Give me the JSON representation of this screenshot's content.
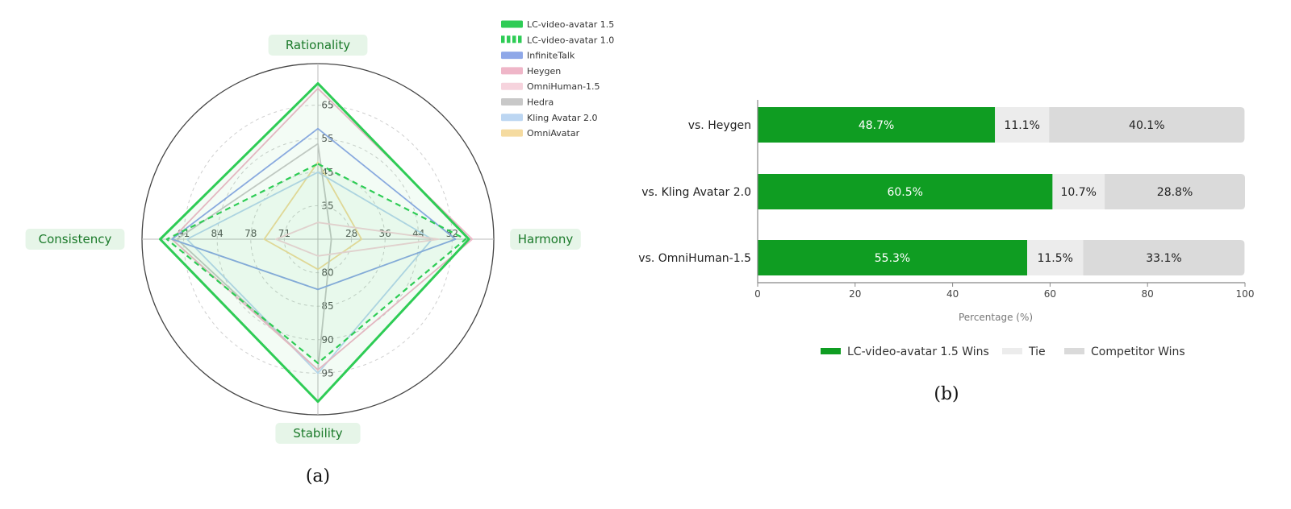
{
  "chart_data": [
    {
      "type": "radar",
      "axes": [
        {
          "name": "Rationality",
          "ticks": [
            "35",
            "45",
            "55",
            "65"
          ]
        },
        {
          "name": "Harmony",
          "ticks": [
            "28",
            "36",
            "44",
            "52"
          ]
        },
        {
          "name": "Stability",
          "ticks": [
            "80",
            "85",
            "90",
            "95"
          ]
        },
        {
          "name": "Consistency",
          "ticks": [
            "71",
            "78",
            "84",
            "91"
          ]
        }
      ],
      "series": [
        {
          "name": "LC-video-avatar 1.5",
          "color": "#2ecc55",
          "style": "solid",
          "values": [
            0.93,
            0.9,
            0.97,
            0.94
          ]
        },
        {
          "name": "LC-video-avatar 1.0",
          "color": "#2ecc55",
          "style": "dashed",
          "values": [
            0.45,
            0.88,
            0.74,
            0.9
          ]
        },
        {
          "name": "InfiniteTalk",
          "color": "#8fa8e8",
          "style": "solid",
          "values": [
            0.66,
            0.82,
            0.3,
            0.87
          ]
        },
        {
          "name": "Heygen",
          "color": "#efb6c8",
          "style": "solid",
          "values": [
            0.9,
            0.92,
            0.78,
            0.87
          ]
        },
        {
          "name": "OmniHuman-1.5",
          "color": "#f6d3dd",
          "style": "solid",
          "values": [
            0.1,
            0.72,
            0.1,
            0.25
          ]
        },
        {
          "name": "Hedra",
          "color": "#c8c8c8",
          "style": "solid",
          "values": [
            0.57,
            0.08,
            0.78,
            0.84
          ]
        },
        {
          "name": "Kling Avatar 2.0",
          "color": "#bcd6f2",
          "style": "solid",
          "values": [
            0.4,
            0.68,
            0.8,
            0.78
          ]
        },
        {
          "name": "OmniAvatar",
          "color": "#f5dba0",
          "style": "solid",
          "values": [
            0.46,
            0.26,
            0.18,
            0.32
          ]
        }
      ],
      "caption": "(a)"
    },
    {
      "type": "bar",
      "orientation": "horizontal",
      "stacked": true,
      "categories": [
        "vs. Heygen",
        "vs. Kling Avatar 2.0",
        "vs. OmniHuman-1.5"
      ],
      "series": [
        {
          "name": "LC-video-avatar 1.5 Wins",
          "color": "#0f9d22",
          "values": [
            48.7,
            60.5,
            55.3
          ],
          "labels": [
            "48.7%",
            "60.5%",
            "55.3%"
          ]
        },
        {
          "name": "Tie",
          "color": "#ececec",
          "values": [
            11.1,
            10.7,
            11.5
          ],
          "labels": [
            "11.1%",
            "10.7%",
            "11.5%"
          ]
        },
        {
          "name": "Competitor Wins",
          "color": "#dadada",
          "values": [
            40.1,
            28.8,
            33.1
          ],
          "labels": [
            "40.1%",
            "28.8%",
            "33.1%"
          ]
        }
      ],
      "xlabel": "Percentage (%)",
      "xlim": [
        0,
        100
      ],
      "xticks": [
        "0",
        "20",
        "40",
        "60",
        "80",
        "100"
      ],
      "legend_position": "bottom",
      "caption": "(b)"
    }
  ]
}
